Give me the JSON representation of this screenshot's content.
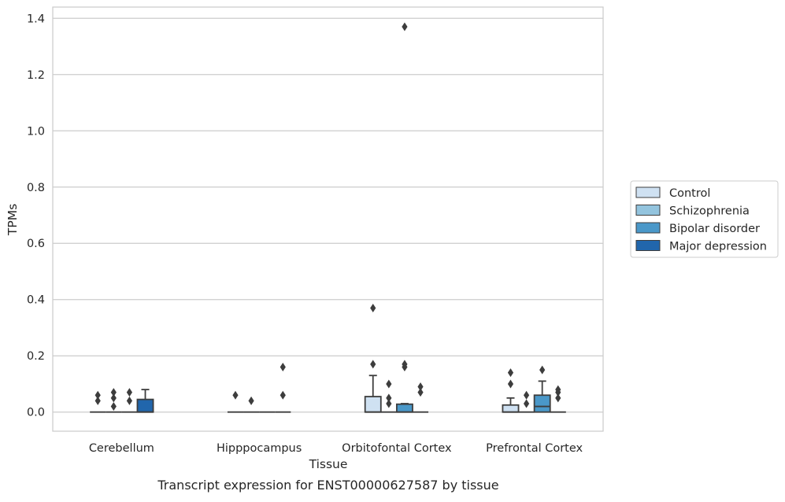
{
  "chart_data": {
    "type": "box",
    "title": "",
    "caption": "Transcript expression for ENST00000627587 by tissue",
    "xlabel": "Tissue",
    "ylabel": "TPMs",
    "ylim": [
      -0.068,
      1.44
    ],
    "yticks": [
      0.0,
      0.2,
      0.4,
      0.6,
      0.8,
      1.0,
      1.2,
      1.4
    ],
    "ytick_labels": [
      "0.0",
      "0.2",
      "0.4",
      "0.6",
      "0.8",
      "1.0",
      "1.2",
      "1.4"
    ],
    "grid": "horizontal",
    "legend_position": "right",
    "categories": [
      "Cerebellum",
      "Hipppocampus",
      "Orbitofontal Cortex",
      "Prefrontal Cortex"
    ],
    "series": [
      {
        "name": "Control",
        "color": "#cfe1f2",
        "boxes": [
          {
            "q1": 0,
            "median": 0,
            "q3": 0,
            "whisker_low": 0,
            "whisker_high": 0,
            "outliers": [
              0.04,
              0.06
            ]
          },
          {
            "q1": 0,
            "median": 0,
            "q3": 0,
            "whisker_low": 0,
            "whisker_high": 0,
            "outliers": [
              0.06
            ]
          },
          {
            "q1": 0,
            "median": 0,
            "q3": 0.055,
            "whisker_low": 0,
            "whisker_high": 0.13,
            "outliers": [
              0.17,
              0.37
            ]
          },
          {
            "q1": 0,
            "median": 0,
            "q3": 0.025,
            "whisker_low": 0,
            "whisker_high": 0.05,
            "outliers": [
              0.1,
              0.14
            ]
          }
        ]
      },
      {
        "name": "Schizophrenia",
        "color": "#93c4de",
        "boxes": [
          {
            "q1": 0,
            "median": 0,
            "q3": 0,
            "whisker_low": 0,
            "whisker_high": 0,
            "outliers": [
              0.02,
              0.05,
              0.07
            ]
          },
          {
            "q1": 0,
            "median": 0,
            "q3": 0,
            "whisker_low": 0,
            "whisker_high": 0,
            "outliers": [
              0.04
            ]
          },
          {
            "q1": 0,
            "median": 0,
            "q3": 0,
            "whisker_low": 0,
            "whisker_high": 0,
            "outliers": [
              0.03,
              0.05,
              0.1
            ]
          },
          {
            "q1": 0,
            "median": 0,
            "q3": 0,
            "whisker_low": 0,
            "whisker_high": 0,
            "outliers": [
              0.03,
              0.06
            ]
          }
        ]
      },
      {
        "name": "Bipolar disorder",
        "color": "#4a98c9",
        "boxes": [
          {
            "q1": 0,
            "median": 0,
            "q3": 0,
            "whisker_low": 0,
            "whisker_high": 0,
            "outliers": [
              0.04,
              0.07
            ]
          },
          {
            "q1": 0,
            "median": 0,
            "q3": 0,
            "whisker_low": 0,
            "whisker_high": 0,
            "outliers": []
          },
          {
            "q1": 0,
            "median": 0,
            "q3": 0.028,
            "whisker_low": 0,
            "whisker_high": 0.03,
            "outliers": [
              0.16,
              0.17,
              1.37
            ]
          },
          {
            "q1": 0,
            "median": 0.02,
            "q3": 0.06,
            "whisker_low": 0,
            "whisker_high": 0.11,
            "outliers": [
              0.15
            ]
          }
        ]
      },
      {
        "name": "Major depression",
        "color": "#2166ac",
        "boxes": [
          {
            "q1": 0,
            "median": 0,
            "q3": 0.045,
            "whisker_low": 0,
            "whisker_high": 0.08,
            "outliers": []
          },
          {
            "q1": 0,
            "median": 0,
            "q3": 0,
            "whisker_low": 0,
            "whisker_high": 0,
            "outliers": [
              0.06,
              0.16
            ]
          },
          {
            "q1": 0,
            "median": 0,
            "q3": 0,
            "whisker_low": 0,
            "whisker_high": 0,
            "outliers": [
              0.07,
              0.09
            ]
          },
          {
            "q1": 0,
            "median": 0,
            "q3": 0,
            "whisker_low": 0,
            "whisker_high": 0,
            "outliers": [
              0.05,
              0.07,
              0.08
            ]
          }
        ]
      }
    ]
  }
}
